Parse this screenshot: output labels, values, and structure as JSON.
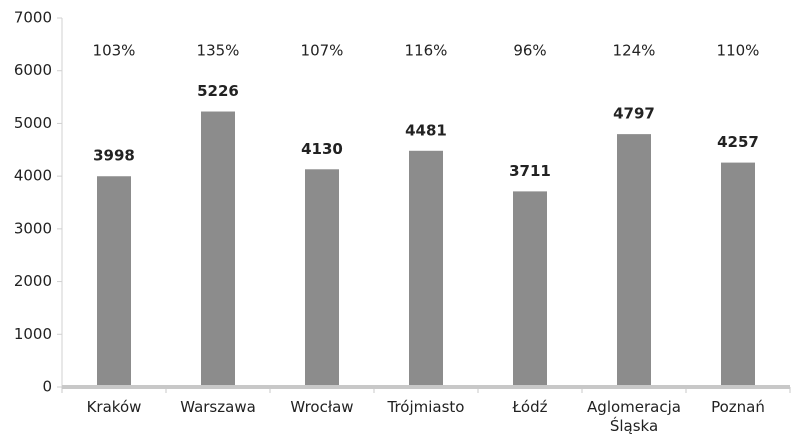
{
  "chart_data": {
    "type": "bar",
    "categories": [
      "Kraków",
      "Warszawa",
      "Wrocław",
      "Trójmiasto",
      "Łódź",
      "Aglomeracja Śląska",
      "Poznań"
    ],
    "values": [
      3998,
      5226,
      4130,
      4481,
      3711,
      4797,
      4257
    ],
    "percent_labels": [
      "103%",
      "135%",
      "107%",
      "116%",
      "96%",
      "124%",
      "110%"
    ],
    "color": "#8c8c8c",
    "ylim": [
      0,
      7000
    ],
    "yticks": [
      0,
      1000,
      2000,
      3000,
      4000,
      5000,
      6000,
      7000
    ],
    "grid": false
  }
}
